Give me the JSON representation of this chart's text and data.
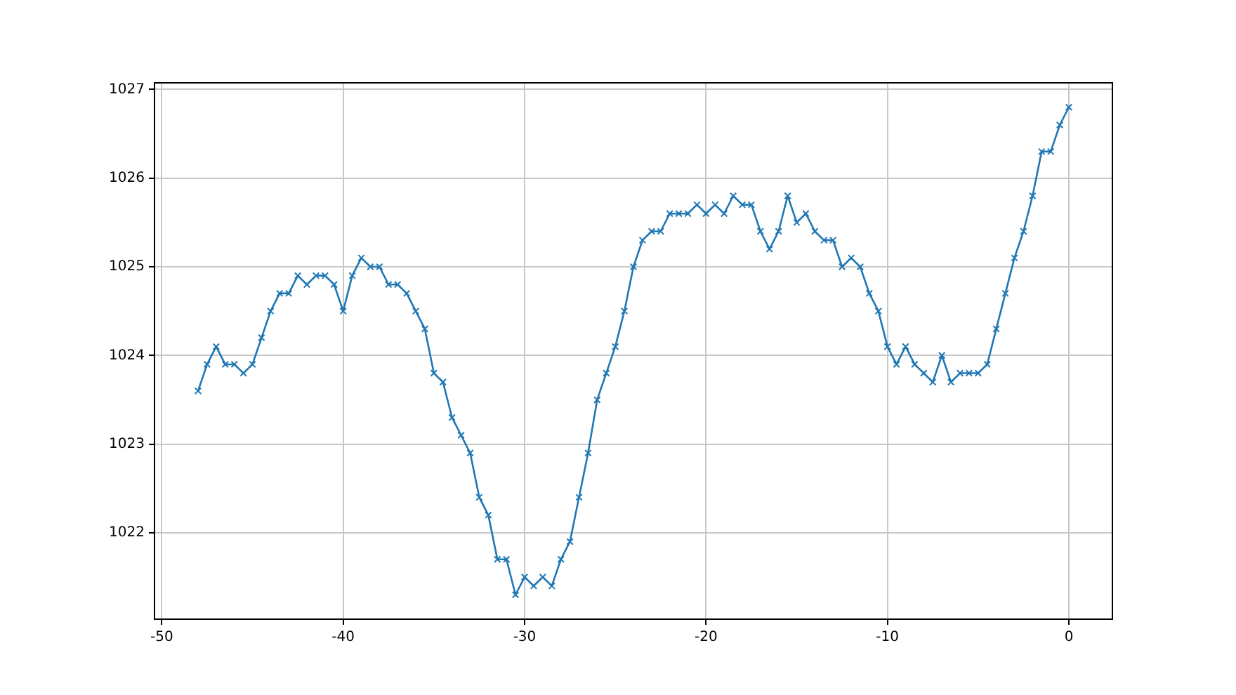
{
  "chart_data": {
    "type": "line",
    "marker": "cross",
    "grid": true,
    "xlim": [
      -50.4,
      2.4
    ],
    "xticks": [
      -50,
      -40,
      -30,
      -20,
      -10,
      0
    ],
    "ylim": [
      1021.025,
      1027.075
    ],
    "yticks": [
      1022,
      1023,
      1024,
      1025,
      1026,
      1027
    ],
    "x": [
      -48,
      -47.5,
      -47,
      -46.5,
      -46,
      -45.5,
      -45,
      -44.5,
      -44,
      -43.5,
      -43,
      -42.5,
      -42,
      -41.5,
      -41,
      -40.5,
      -40,
      -39.5,
      -39,
      -38.5,
      -38,
      -37.5,
      -37,
      -36.5,
      -36,
      -35.5,
      -35,
      -34.5,
      -34,
      -33.5,
      -33,
      -32.5,
      -32,
      -31.5,
      -31,
      -30.5,
      -30,
      -29.5,
      -29,
      -28.5,
      -28,
      -27.5,
      -27,
      -26.5,
      -26,
      -25.5,
      -25,
      -24.5,
      -24,
      -23.5,
      -23,
      -22.5,
      -22,
      -21.5,
      -21,
      -20.5,
      -20,
      -19.5,
      -19,
      -18.5,
      -18,
      -17.5,
      -17,
      -16.5,
      -16,
      -15.5,
      -15,
      -14.5,
      -14,
      -13.5,
      -13,
      -12.5,
      -12,
      -11.5,
      -11,
      -10.5,
      -10,
      -9.5,
      -9,
      -8.5,
      -8,
      -7.5,
      -7,
      -6.5,
      -6,
      -5.5,
      -5,
      -4.5,
      -4,
      -3.5,
      -3,
      -2.5,
      -2,
      -1.5,
      -1,
      -0.5,
      0
    ],
    "series": [
      {
        "color": "#1f77b4",
        "values": [
          1023.6,
          1023.9,
          1024.1,
          1023.9,
          1023.9,
          1023.8,
          1023.9,
          1024.2,
          1024.5,
          1024.7,
          1024.7,
          1024.9,
          1024.8,
          1024.9,
          1024.9,
          1024.8,
          1024.5,
          1024.9,
          1025.1,
          1025.0,
          1025.0,
          1024.8,
          1024.8,
          1024.7,
          1024.5,
          1024.3,
          1023.8,
          1023.7,
          1023.3,
          1023.1,
          1022.9,
          1022.4,
          1022.2,
          1021.7,
          1021.7,
          1021.3,
          1021.5,
          1021.4,
          1021.5,
          1021.4,
          1021.7,
          1021.9,
          1022.4,
          1022.9,
          1023.5,
          1023.8,
          1024.1,
          1024.5,
          1025.0,
          1025.3,
          1025.4,
          1025.4,
          1025.6,
          1025.6,
          1025.6,
          1025.7,
          1025.6,
          1025.7,
          1025.6,
          1025.8,
          1025.7,
          1025.7,
          1025.4,
          1025.2,
          1025.4,
          1025.8,
          1025.5,
          1025.6,
          1025.4,
          1025.3,
          1025.3,
          1025.0,
          1025.1,
          1025.0,
          1024.7,
          1024.5,
          1024.1,
          1023.9,
          1024.1,
          1023.9,
          1023.8,
          1023.7,
          1024.0,
          1023.7,
          1023.8,
          1023.8,
          1023.8,
          1023.9,
          1024.3,
          1024.7,
          1025.1,
          1025.4,
          1025.8,
          1026.3,
          1026.3,
          1026.6,
          1026.8
        ]
      }
    ]
  }
}
